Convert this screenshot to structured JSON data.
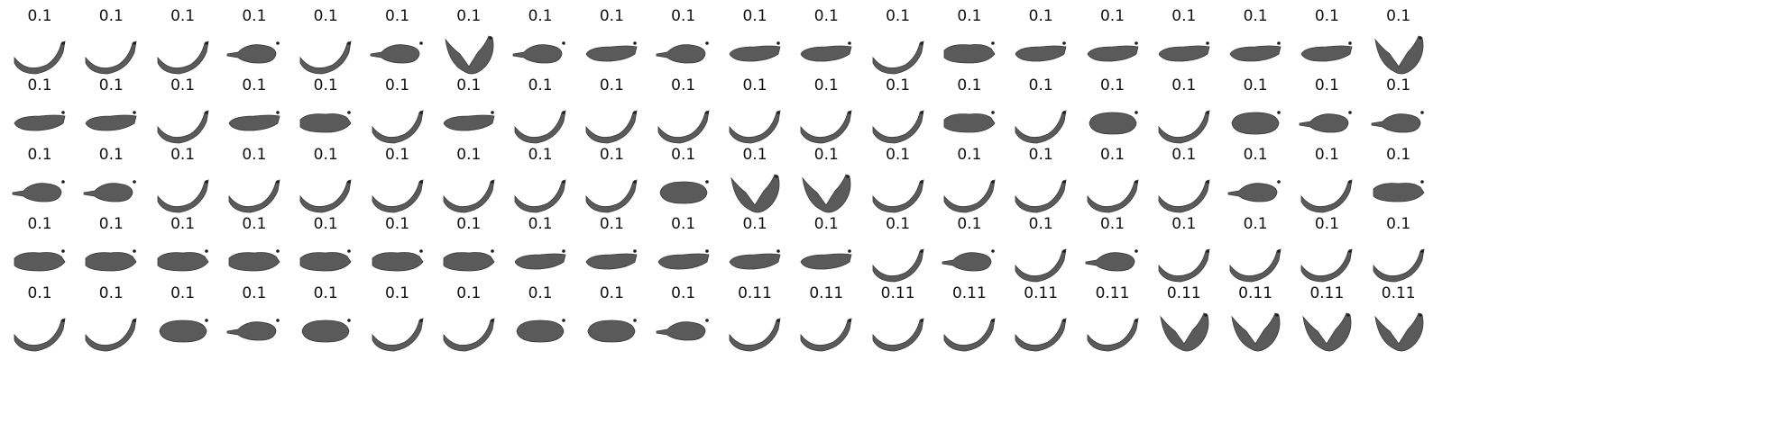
{
  "grid": {
    "rows": 5,
    "cols": 20,
    "labels": [
      [
        "0.1",
        "0.1",
        "0.1",
        "0.1",
        "0.1",
        "0.1",
        "0.1",
        "0.1",
        "0.1",
        "0.1",
        "0.1",
        "0.1",
        "0.1",
        "0.1",
        "0.1",
        "0.1",
        "0.1",
        "0.1",
        "0.1",
        "0.1"
      ],
      [
        "0.1",
        "0.1",
        "0.1",
        "0.1",
        "0.1",
        "0.1",
        "0.1",
        "0.1",
        "0.1",
        "0.1",
        "0.1",
        "0.1",
        "0.1",
        "0.1",
        "0.1",
        "0.1",
        "0.1",
        "0.1",
        "0.1",
        "0.1"
      ],
      [
        "0.1",
        "0.1",
        "0.1",
        "0.1",
        "0.1",
        "0.1",
        "0.1",
        "0.1",
        "0.1",
        "0.1",
        "0.1",
        "0.1",
        "0.1",
        "0.1",
        "0.1",
        "0.1",
        "0.1",
        "0.1",
        "0.1",
        "0.1"
      ],
      [
        "0.1",
        "0.1",
        "0.1",
        "0.1",
        "0.1",
        "0.1",
        "0.1",
        "0.1",
        "0.1",
        "0.1",
        "0.1",
        "0.1",
        "0.1",
        "0.1",
        "0.1",
        "0.1",
        "0.1",
        "0.1",
        "0.1",
        "0.1"
      ],
      [
        "0.1",
        "0.1",
        "0.1",
        "0.1",
        "0.1",
        "0.1",
        "0.1",
        "0.1",
        "0.1",
        "0.1",
        "0.11",
        "0.11",
        "0.11",
        "0.11",
        "0.11",
        "0.11",
        "0.11",
        "0.11",
        "0.11",
        "0.11"
      ]
    ],
    "shapes": [
      [
        "curved",
        "curved",
        "curved",
        "chunk",
        "curved",
        "chunk",
        "heart",
        "chunk",
        "flat",
        "chunk",
        "flat",
        "flat",
        "curved",
        "clump",
        "flat",
        "flat",
        "flat",
        "flat",
        "flat",
        "heart"
      ],
      [
        "flat",
        "flat",
        "curved",
        "flat",
        "clump",
        "curved",
        "flat",
        "curved",
        "curved",
        "curved",
        "curved",
        "curved",
        "curved",
        "clump",
        "curved",
        "oval",
        "curved",
        "oval",
        "chunk",
        "chunk"
      ],
      [
        "chunk",
        "chunk",
        "curved",
        "curved",
        "curved",
        "curved",
        "curved",
        "curved",
        "curved",
        "oval",
        "heart",
        "heart",
        "curved",
        "curved",
        "curved",
        "curved",
        "curved",
        "chunk",
        "curved",
        "clump"
      ],
      [
        "clump",
        "clump",
        "clump",
        "clump",
        "clump",
        "clump",
        "clump",
        "flat",
        "flat",
        "flat",
        "flat",
        "flat",
        "curved",
        "chunk",
        "curved",
        "chunk",
        "curved",
        "curved",
        "curved",
        "curved"
      ],
      [
        "curved",
        "curved",
        "oval",
        "chunk",
        "oval",
        "curved",
        "curved",
        "oval",
        "oval",
        "chunk",
        "curved",
        "curved",
        "curved",
        "curved",
        "curved",
        "curved",
        "heart",
        "heart",
        "heart",
        "heart"
      ]
    ]
  }
}
